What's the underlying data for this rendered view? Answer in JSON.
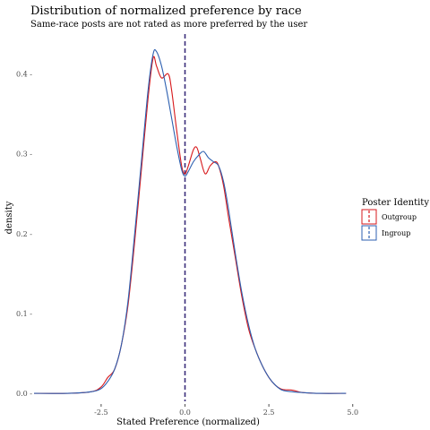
{
  "chart_data": {
    "type": "line",
    "title": "Distribution of normalized preference by race",
    "subtitle": "Same-race posts are not rated as more preferred by the user",
    "xlabel": "Stated Preference (normalized)",
    "ylabel": "density",
    "xlim": [
      -4.5,
      4.9
    ],
    "ylim": [
      -0.01,
      0.45
    ],
    "x_ticks": [
      -2.5,
      0.0,
      2.5,
      5.0
    ],
    "x_tick_labels": [
      "-2.5",
      "0.0",
      "2.5",
      "5.0"
    ],
    "y_ticks": [
      0.0,
      0.1,
      0.2,
      0.3,
      0.4
    ],
    "y_tick_labels": [
      "0.0 -",
      "0.1 -",
      "0.2 -",
      "0.3 -",
      "0.4 -"
    ],
    "grid": false,
    "legend": {
      "title": "Poster Identity",
      "position": "right"
    },
    "vline": {
      "x": 0.0,
      "style": "dashed"
    },
    "series": [
      {
        "name": "Outgroup",
        "color": "#d7191c",
        "points": [
          [
            -4.5,
            0.0
          ],
          [
            -3.5,
            0.0
          ],
          [
            -2.8,
            0.002
          ],
          [
            -2.5,
            0.008
          ],
          [
            -2.3,
            0.02
          ],
          [
            -2.1,
            0.03
          ],
          [
            -1.9,
            0.06
          ],
          [
            -1.7,
            0.11
          ],
          [
            -1.5,
            0.19
          ],
          [
            -1.3,
            0.28
          ],
          [
            -1.1,
            0.37
          ],
          [
            -0.95,
            0.42
          ],
          [
            -0.85,
            0.41
          ],
          [
            -0.7,
            0.395
          ],
          [
            -0.5,
            0.4
          ],
          [
            -0.4,
            0.38
          ],
          [
            -0.25,
            0.33
          ],
          [
            -0.1,
            0.285
          ],
          [
            0.0,
            0.275
          ],
          [
            0.1,
            0.285
          ],
          [
            0.25,
            0.305
          ],
          [
            0.35,
            0.308
          ],
          [
            0.45,
            0.295
          ],
          [
            0.6,
            0.275
          ],
          [
            0.75,
            0.285
          ],
          [
            0.9,
            0.29
          ],
          [
            1.0,
            0.285
          ],
          [
            1.15,
            0.26
          ],
          [
            1.3,
            0.22
          ],
          [
            1.5,
            0.17
          ],
          [
            1.7,
            0.12
          ],
          [
            1.9,
            0.08
          ],
          [
            2.1,
            0.055
          ],
          [
            2.3,
            0.035
          ],
          [
            2.5,
            0.02
          ],
          [
            2.7,
            0.01
          ],
          [
            2.9,
            0.005
          ],
          [
            3.2,
            0.004
          ],
          [
            3.5,
            0.001
          ],
          [
            4.0,
            0.0
          ],
          [
            4.8,
            0.0
          ]
        ]
      },
      {
        "name": "Ingroup",
        "color": "#2c5fb0",
        "points": [
          [
            -4.5,
            0.0
          ],
          [
            -3.5,
            0.0
          ],
          [
            -2.8,
            0.002
          ],
          [
            -2.5,
            0.006
          ],
          [
            -2.3,
            0.015
          ],
          [
            -2.1,
            0.03
          ],
          [
            -1.9,
            0.06
          ],
          [
            -1.7,
            0.115
          ],
          [
            -1.5,
            0.2
          ],
          [
            -1.3,
            0.29
          ],
          [
            -1.1,
            0.38
          ],
          [
            -0.95,
            0.425
          ],
          [
            -0.85,
            0.428
          ],
          [
            -0.7,
            0.41
          ],
          [
            -0.55,
            0.38
          ],
          [
            -0.4,
            0.345
          ],
          [
            -0.25,
            0.31
          ],
          [
            -0.1,
            0.28
          ],
          [
            0.0,
            0.272
          ],
          [
            0.1,
            0.278
          ],
          [
            0.25,
            0.29
          ],
          [
            0.4,
            0.298
          ],
          [
            0.55,
            0.303
          ],
          [
            0.7,
            0.295
          ],
          [
            0.85,
            0.29
          ],
          [
            1.0,
            0.285
          ],
          [
            1.15,
            0.265
          ],
          [
            1.3,
            0.23
          ],
          [
            1.5,
            0.175
          ],
          [
            1.7,
            0.125
          ],
          [
            1.9,
            0.085
          ],
          [
            2.1,
            0.055
          ],
          [
            2.3,
            0.035
          ],
          [
            2.5,
            0.02
          ],
          [
            2.7,
            0.01
          ],
          [
            2.9,
            0.004
          ],
          [
            3.2,
            0.002
          ],
          [
            3.5,
            0.001
          ],
          [
            4.0,
            0.0
          ],
          [
            4.8,
            0.0
          ]
        ]
      }
    ]
  }
}
